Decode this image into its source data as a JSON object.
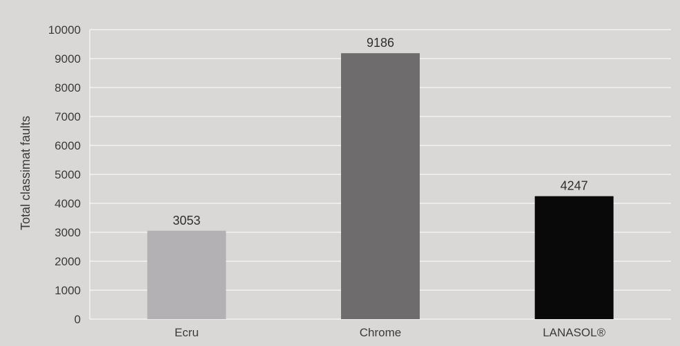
{
  "chart_data": {
    "type": "bar",
    "title": "",
    "xlabel": "",
    "ylabel": "Total classimat faults",
    "categories": [
      "Ecru",
      "Chrome",
      "LANASOL®"
    ],
    "values": [
      3053,
      9186,
      4247
    ],
    "data_labels": [
      "3053",
      "9186",
      "4247"
    ],
    "bar_colors": [
      "#b3b1b4",
      "#6e6c6c",
      "#0a0909"
    ],
    "ylim": [
      0,
      10000
    ],
    "yticks": [
      0,
      1000,
      2000,
      3000,
      4000,
      5000,
      6000,
      7000,
      8000,
      9000,
      10000
    ],
    "ytick_labels": [
      "0",
      "1000",
      "2000",
      "3000",
      "4000",
      "5000",
      "6000",
      "7000",
      "8000",
      "9000",
      "10000"
    ],
    "grid": true,
    "legend": "none"
  },
  "colors": {
    "background": "#d9d8d7",
    "gridline": "#f2f2f2"
  }
}
